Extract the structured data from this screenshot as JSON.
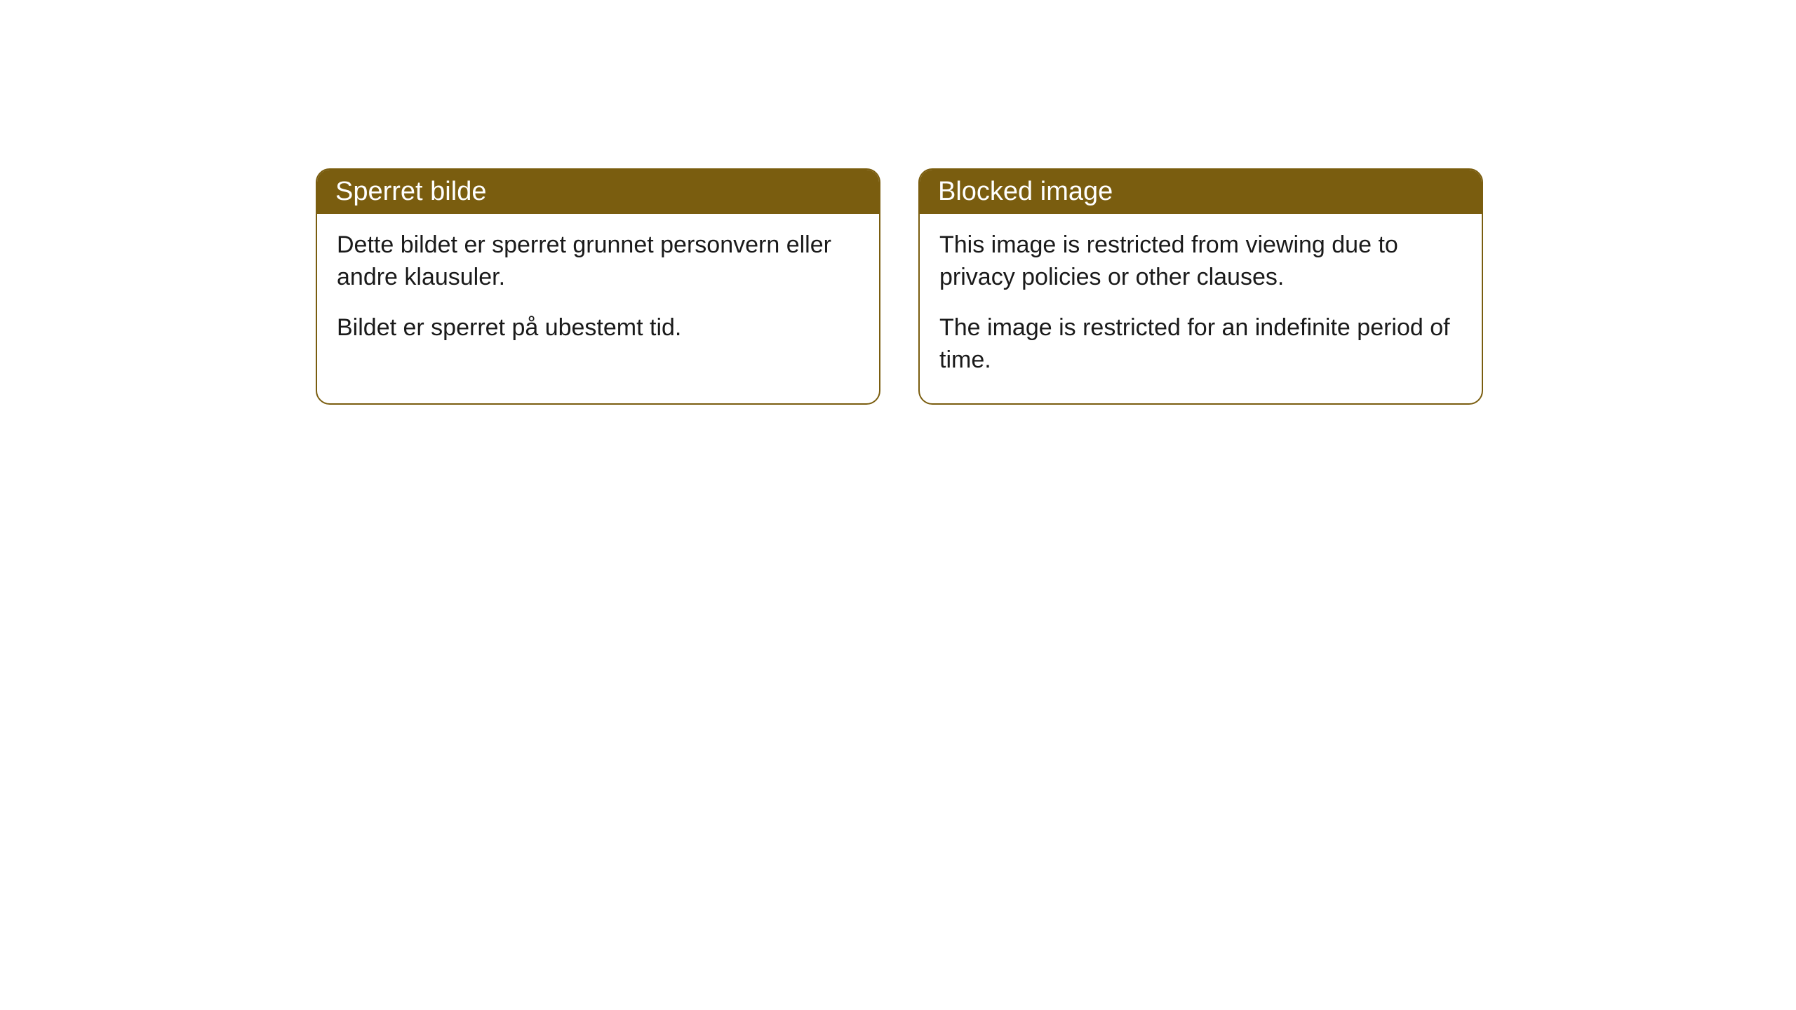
{
  "cards": [
    {
      "header": "Sperret bilde",
      "paragraph1": "Dette bildet er sperret grunnet personvern eller andre klausuler.",
      "paragraph2": "Bildet er sperret på ubestemt tid."
    },
    {
      "header": "Blocked image",
      "paragraph1": "This image is restricted from viewing due to privacy policies or other clauses.",
      "paragraph2": "The image is restricted for an indefinite period of time."
    }
  ],
  "styling": {
    "header_background_color": "#7a5d0f",
    "header_text_color": "#ffffff",
    "border_color": "#7a5d0f",
    "body_background_color": "#ffffff",
    "body_text_color": "#1a1a1a",
    "border_radius": 20,
    "header_fontsize": 38,
    "body_fontsize": 34
  }
}
